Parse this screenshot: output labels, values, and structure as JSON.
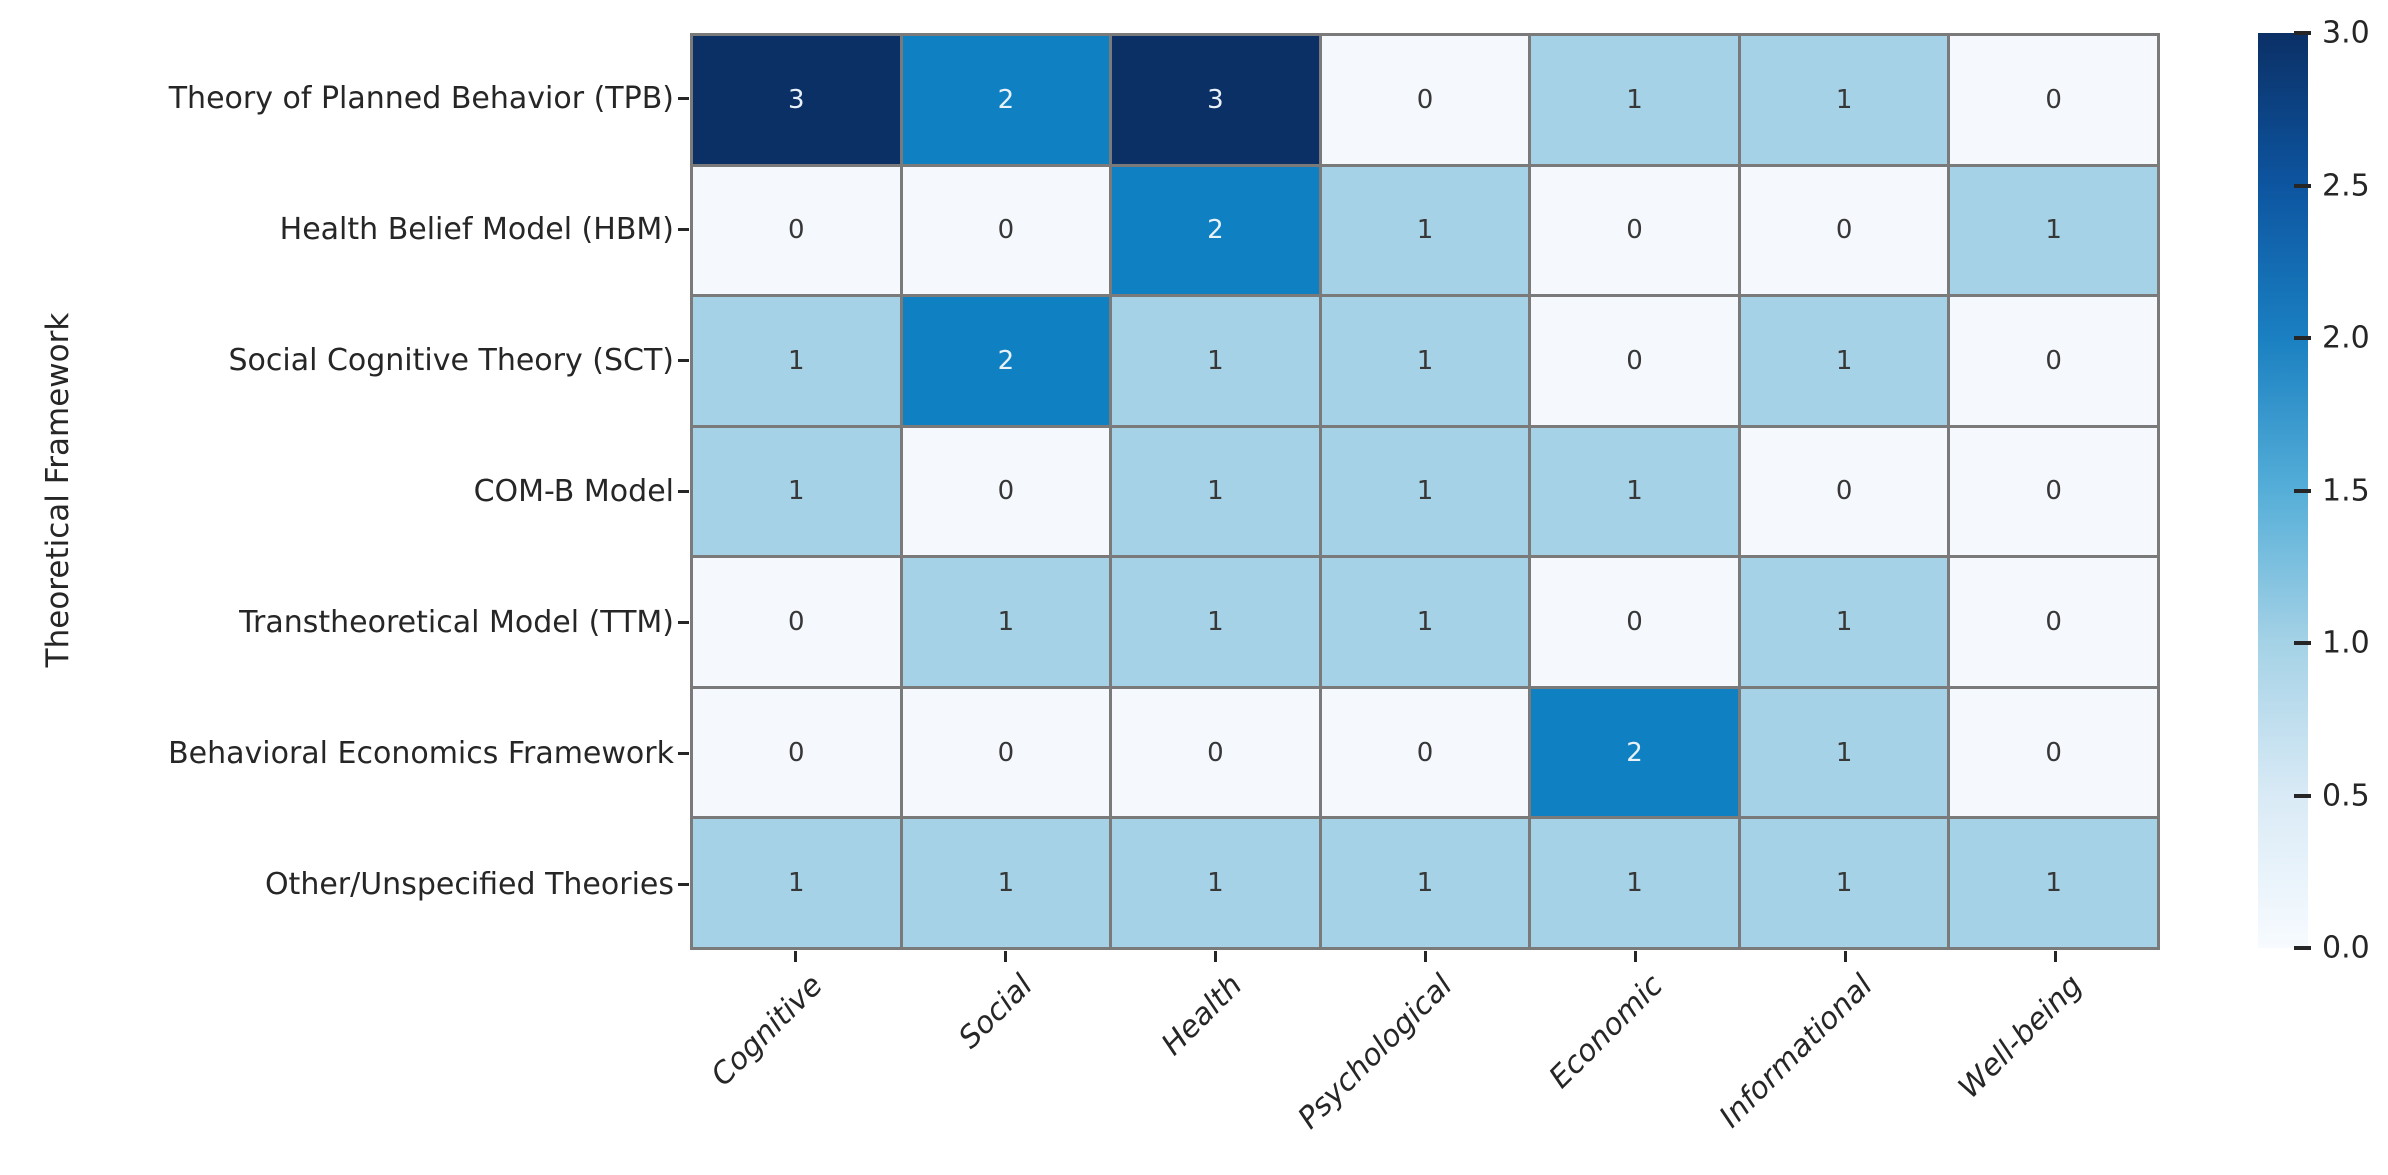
{
  "chart_data": {
    "type": "heatmap",
    "title": "",
    "xlabel": "",
    "ylabel": "Theoretical Framework",
    "rows": [
      "Theory of Planned Behavior (TPB)",
      "Health Belief Model (HBM)",
      "Social Cognitive Theory (SCT)",
      "COM-B Model",
      "Transtheoretical Model (TTM)",
      "Behavioral Economics Framework",
      "Other/Unspecified Theories"
    ],
    "columns": [
      "Cognitive",
      "Social",
      "Health",
      "Psychological",
      "Economic",
      "Informational",
      "Well-being"
    ],
    "values": [
      [
        3,
        2,
        3,
        0,
        1,
        1,
        0
      ],
      [
        0,
        0,
        2,
        1,
        0,
        0,
        1
      ],
      [
        1,
        2,
        1,
        1,
        0,
        1,
        0
      ],
      [
        1,
        0,
        1,
        1,
        1,
        0,
        0
      ],
      [
        0,
        1,
        1,
        1,
        0,
        1,
        0
      ],
      [
        0,
        0,
        0,
        0,
        2,
        1,
        0
      ],
      [
        1,
        1,
        1,
        1,
        1,
        1,
        1
      ]
    ],
    "value_range": [
      0,
      3
    ],
    "grid_on": true,
    "colormap": "Blues",
    "value_colors": {
      "0": "#f5f9fd",
      "1": "#a5d2e6",
      "2": "#0f81c2",
      "3": "#0b3066"
    },
    "cell_text_dark": "#373737",
    "cell_text_light": "#e9f1f9",
    "grid_color": "#7a7a7a",
    "colorbar": {
      "position": "right",
      "min": 0.0,
      "max": 3.0,
      "ticks": [
        "3.0",
        "2.5",
        "2.0",
        "1.5",
        "1.0",
        "0.5",
        "0.0"
      ],
      "gradient_top_to_bottom": [
        "#0b3066",
        "#0d55a0",
        "#1a80c1",
        "#55aed8",
        "#a5d2e6",
        "#d9eaf6",
        "#f7fbff"
      ]
    }
  }
}
